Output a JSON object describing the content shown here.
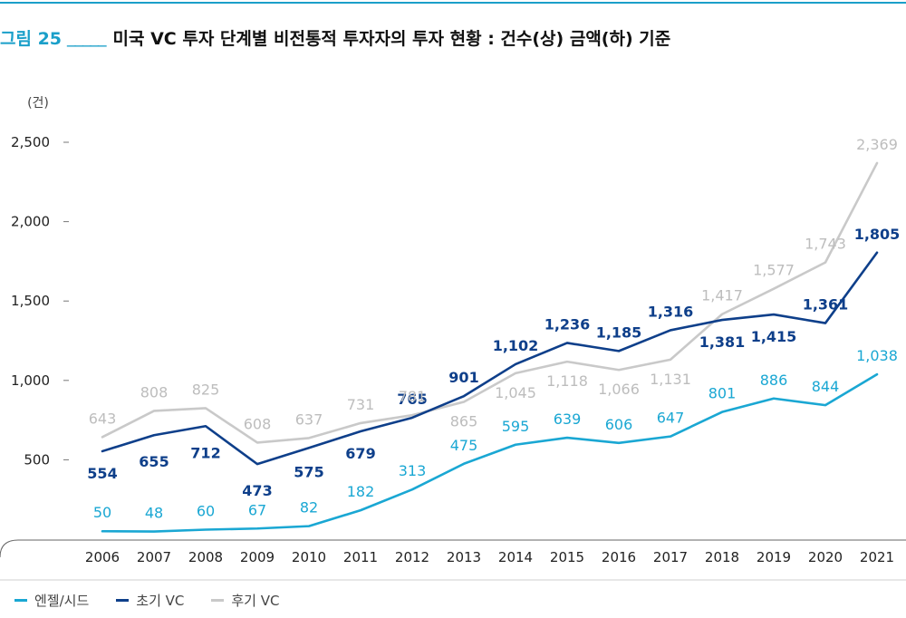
{
  "figure": {
    "label": "그림 25",
    "blank": "_____",
    "title": "미국 VC 투자 단계별 비전통적 투자자의 투자 현황 : 건수(상) 금액(하) 기준"
  },
  "colors": {
    "accent": "#1a9fc9",
    "angel": "#1aa7d3",
    "early": "#0e3f8a",
    "late": "#c9c9c9"
  },
  "chart_data": {
    "type": "line",
    "unit_label": "(건)",
    "x": [
      "2006",
      "2007",
      "2008",
      "2009",
      "2010",
      "2011",
      "2012",
      "2013",
      "2014",
      "2015",
      "2016",
      "2017",
      "2018",
      "2019",
      "2020",
      "2021"
    ],
    "ylim": [
      0,
      2500
    ],
    "yticks": [
      {
        "value": 500,
        "label": "500"
      },
      {
        "value": 1000,
        "label": "1,000"
      },
      {
        "value": 1500,
        "label": "1,500"
      },
      {
        "value": 2000,
        "label": "2,000"
      },
      {
        "value": 2500,
        "label": "2,500"
      }
    ],
    "grid": false,
    "legend_position": "bottom-left",
    "series": [
      {
        "name": "엔젤/시드",
        "color": "#1aa7d3",
        "values": [
          50,
          48,
          60,
          67,
          82,
          182,
          313,
          475,
          595,
          639,
          606,
          647,
          801,
          886,
          844,
          1038
        ],
        "labels": [
          "50",
          "48",
          "60",
          "67",
          "82",
          "182",
          "313",
          "475",
          "595",
          "639",
          "606",
          "647",
          "801",
          "886",
          "844",
          "1,038"
        ]
      },
      {
        "name": "초기 VC",
        "color": "#0e3f8a",
        "values": [
          554,
          655,
          712,
          473,
          575,
          679,
          765,
          901,
          1102,
          1236,
          1185,
          1316,
          1381,
          1415,
          1361,
          1805
        ],
        "labels": [
          "554",
          "655",
          "712",
          "473",
          "575",
          "679",
          "765",
          "901",
          "1,102",
          "1,236",
          "1,185",
          "1,316",
          "1,381",
          "1,415",
          "1,361",
          "1,805"
        ]
      },
      {
        "name": "후기 VC",
        "color": "#c9c9c9",
        "values": [
          643,
          808,
          825,
          608,
          637,
          731,
          781,
          865,
          1045,
          1118,
          1066,
          1131,
          1417,
          1577,
          1743,
          2369
        ],
        "labels": [
          "643",
          "808",
          "825",
          "608",
          "637",
          "731",
          "781",
          "865",
          "1,045",
          "1,118",
          "1,066",
          "1,131",
          "1,417",
          "1,577",
          "1,743",
          "2,369"
        ]
      }
    ]
  }
}
